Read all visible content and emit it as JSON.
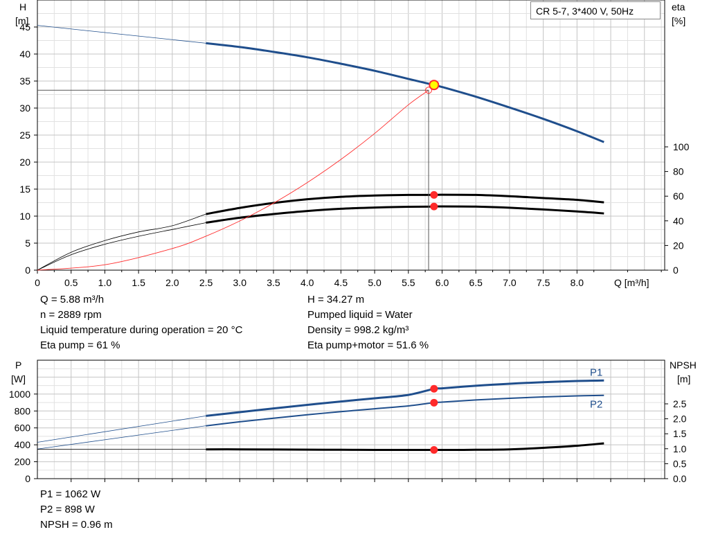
{
  "pump_title": "CR 5-7, 3*400 V, 50Hz",
  "colors": {
    "blue": "#1f4e8c",
    "black": "#000000",
    "red": "#ff2a2a",
    "yellow": "#ffff00",
    "grid": "#cccccc"
  },
  "upper_info_left": [
    "Q = 5.88 m³/h",
    "n = 2889 rpm",
    "Liquid temperature during operation = 20 °C",
    "Eta pump = 61 %"
  ],
  "upper_info_right": [
    "H = 34.27 m",
    "Pumped liquid = Water",
    "Density = 998.2 kg/m³",
    "Eta pump+motor = 51.6 %"
  ],
  "lower_info": [
    "P1 = 1062 W",
    "P2 = 898 W",
    "NPSH = 0.96 m"
  ],
  "chart_data": [
    {
      "type": "line",
      "yaxis_left_label": [
        "H",
        "[m]"
      ],
      "yaxis_right_label": [
        "eta",
        "[%]"
      ],
      "xlabel": "Q [m³/h]",
      "xlim": [
        0,
        9.3
      ],
      "ylim": [
        0,
        50
      ],
      "y2lim": [
        0,
        100
      ],
      "xticks": [
        "0",
        "0.5",
        "1.0",
        "1.5",
        "2.0",
        "2.5",
        "3.0",
        "3.5",
        "4.0",
        "4.5",
        "5.0",
        "5.5",
        "6.0",
        "6.5",
        "7.0",
        "7.5",
        "8.0"
      ],
      "yticks": [
        "0",
        "5",
        "10",
        "15",
        "20",
        "25",
        "30",
        "35",
        "40",
        "45"
      ],
      "y2ticks": [
        "0",
        "20",
        "40",
        "60",
        "80",
        "100"
      ],
      "series": [
        {
          "key": "H",
          "axis": "left",
          "color": "#1f4e8c",
          "thin": {
            "x": [
              0,
              2.5
            ],
            "y": [
              45.3,
              42.0
            ]
          },
          "x": [
            2.5,
            3.0,
            3.5,
            4.0,
            4.5,
            5.0,
            5.5,
            5.88,
            6.0,
            6.5,
            7.0,
            7.5,
            8.0,
            8.4
          ],
          "y": [
            42.0,
            41.3,
            40.4,
            39.4,
            38.2,
            36.9,
            35.4,
            34.27,
            33.9,
            32.1,
            30.1,
            28.0,
            25.7,
            23.7
          ]
        },
        {
          "key": "eta_pump",
          "axis": "right",
          "color": "#000000",
          "thin": {
            "x": [
              0,
              0.5,
              1.0,
              1.5,
              2.0,
              2.5
            ],
            "y": [
              0,
              14.5,
              24.0,
              31.0,
              36.0,
              45.5
            ]
          },
          "x": [
            2.5,
            3.0,
            3.5,
            4.0,
            4.5,
            5.0,
            5.5,
            5.88,
            6.0,
            6.5,
            7.0,
            7.5,
            8.0,
            8.4
          ],
          "y": [
            45.5,
            50.5,
            54.5,
            57.5,
            59.5,
            60.5,
            61.0,
            61.0,
            61.2,
            61.0,
            60.0,
            58.5,
            57.0,
            55.0
          ]
        },
        {
          "key": "eta_total",
          "axis": "right",
          "color": "#000000",
          "thin": {
            "x": [
              0,
              0.5,
              1.0,
              1.5,
              2.0,
              2.5
            ],
            "y": [
              0,
              12.5,
              21.0,
              27.5,
              33.0,
              38.5
            ]
          },
          "x": [
            2.5,
            3.0,
            3.5,
            4.0,
            4.5,
            5.0,
            5.5,
            5.88,
            6.0,
            6.5,
            7.0,
            7.5,
            8.0,
            8.4
          ],
          "y": [
            38.5,
            42.5,
            45.5,
            48.0,
            49.8,
            50.8,
            51.4,
            51.6,
            51.7,
            51.5,
            50.6,
            49.2,
            47.6,
            46.0
          ]
        },
        {
          "key": "system",
          "axis": "left",
          "color": "#ff2a2a",
          "x": [
            0,
            1.0,
            2.0,
            2.5,
            3.0,
            3.5,
            4.0,
            4.5,
            5.0,
            5.5,
            5.8
          ],
          "y": [
            0,
            1.0,
            4.0,
            6.3,
            9.1,
            12.4,
            16.2,
            20.5,
            25.3,
            30.6,
            33.3
          ]
        }
      ],
      "operating_point": {
        "q": 5.88,
        "h": 34.27,
        "eta_pump": 61.0,
        "eta_total": 51.6
      },
      "system_point": {
        "q": 5.8,
        "h": 33.3
      }
    },
    {
      "type": "line",
      "yaxis_left_label": [
        "P",
        "[W]"
      ],
      "yaxis_right_label": [
        "NPSH",
        "[m]"
      ],
      "xlim": [
        0,
        9.3
      ],
      "ylim": [
        0,
        1400
      ],
      "y2lim": [
        0,
        3.5
      ],
      "yticks": [
        "0",
        "200",
        "400",
        "600",
        "800",
        "1000"
      ],
      "y2ticks": [
        "0.0",
        "0.5",
        "1.0",
        "1.5",
        "2.0",
        "2.5"
      ],
      "series": [
        {
          "name": "P1",
          "axis": "left",
          "color": "#1f4e8c",
          "thin": {
            "x": [
              0,
              2.5
            ],
            "y": [
              430,
              742
            ]
          },
          "x": [
            2.5,
            3.0,
            3.5,
            4.0,
            4.5,
            5.0,
            5.5,
            5.88,
            6.0,
            6.5,
            7.0,
            7.5,
            8.0,
            8.4
          ],
          "y": [
            742,
            786,
            830,
            872,
            912,
            950,
            990,
            1062,
            1068,
            1098,
            1122,
            1140,
            1154,
            1160
          ]
        },
        {
          "name": "P2",
          "axis": "left",
          "color": "#1f4e8c",
          "thin": {
            "x": [
              0,
              2.5
            ],
            "y": [
              350,
              625
            ]
          },
          "x": [
            2.5,
            3.0,
            3.5,
            4.0,
            4.5,
            5.0,
            5.5,
            5.88,
            6.0,
            6.5,
            7.0,
            7.5,
            8.0,
            8.4
          ],
          "y": [
            625,
            672,
            715,
            755,
            792,
            826,
            860,
            898,
            905,
            930,
            950,
            966,
            978,
            985
          ]
        },
        {
          "key": "NPSH",
          "axis": "right",
          "color": "#000000",
          "thin": {
            "x": [
              0,
              2.5
            ],
            "y": [
              0.98,
              0.98
            ]
          },
          "x": [
            2.5,
            3.0,
            3.5,
            4.0,
            4.5,
            5.0,
            5.5,
            5.88,
            6.0,
            6.5,
            7.0,
            7.5,
            8.0,
            8.4
          ],
          "y": [
            0.98,
            0.98,
            0.975,
            0.97,
            0.965,
            0.96,
            0.96,
            0.96,
            0.96,
            0.965,
            0.98,
            1.03,
            1.1,
            1.18
          ]
        }
      ],
      "operating_point": {
        "q": 5.88,
        "p1": 1062,
        "p2": 898,
        "npsh": 0.96
      }
    }
  ]
}
